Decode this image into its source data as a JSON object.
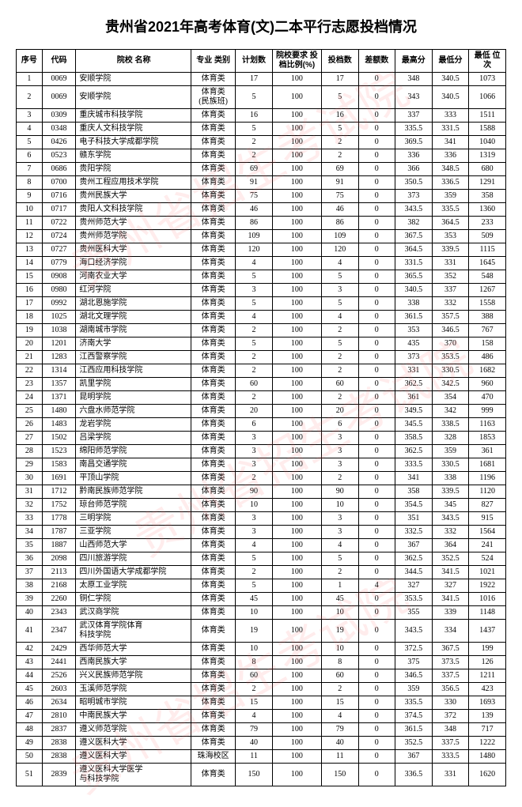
{
  "title": "贵州省2021年高考体育(文)二本平行志愿投档情况",
  "watermark": "贵州省招生考试院",
  "headers": {
    "seq": "序号",
    "code": "代码",
    "name": "院校\n名称",
    "major": "专业\n类别",
    "plan": "计划数",
    "ratio": "院校要求\n投档比例(%)",
    "admit": "投档数",
    "diff": "差额数",
    "max": "最高分",
    "min": "最低分",
    "rank": "最低\n位次"
  },
  "rows": [
    {
      "seq": "1",
      "code": "0069",
      "name": "安顺学院",
      "major": "体育类",
      "plan": "17",
      "ratio": "100",
      "admit": "17",
      "diff": "0",
      "max": "348",
      "min": "340.5",
      "rank": "1073"
    },
    {
      "seq": "2",
      "code": "0069",
      "name": "安顺学院",
      "major": "体育类\n(民族班)",
      "plan": "5",
      "ratio": "100",
      "admit": "5",
      "diff": "0",
      "max": "343",
      "min": "340.5",
      "rank": "1066"
    },
    {
      "seq": "3",
      "code": "0309",
      "name": "重庆城市科技学院",
      "major": "体育类",
      "plan": "16",
      "ratio": "100",
      "admit": "16",
      "diff": "0",
      "max": "337",
      "min": "333",
      "rank": "1511"
    },
    {
      "seq": "4",
      "code": "0348",
      "name": "重庆人文科技学院",
      "major": "体育类",
      "plan": "5",
      "ratio": "100",
      "admit": "5",
      "diff": "0",
      "max": "335.5",
      "min": "331.5",
      "rank": "1588"
    },
    {
      "seq": "5",
      "code": "0426",
      "name": "电子科技大学成都学院",
      "major": "体育类",
      "plan": "2",
      "ratio": "100",
      "admit": "2",
      "diff": "0",
      "max": "369.5",
      "min": "341",
      "rank": "1040"
    },
    {
      "seq": "6",
      "code": "0523",
      "name": "赣东学院",
      "major": "体育类",
      "plan": "2",
      "ratio": "100",
      "admit": "2",
      "diff": "0",
      "max": "336",
      "min": "336",
      "rank": "1319"
    },
    {
      "seq": "7",
      "code": "0686",
      "name": "贵阳学院",
      "major": "体育类",
      "plan": "69",
      "ratio": "100",
      "admit": "69",
      "diff": "0",
      "max": "366",
      "min": "348.5",
      "rank": "680"
    },
    {
      "seq": "8",
      "code": "0700",
      "name": "贵州工程应用技术学院",
      "major": "体育类",
      "plan": "91",
      "ratio": "100",
      "admit": "91",
      "diff": "0",
      "max": "350.5",
      "min": "336.5",
      "rank": "1291"
    },
    {
      "seq": "9",
      "code": "0716",
      "name": "贵州民族大学",
      "major": "体育类",
      "plan": "75",
      "ratio": "100",
      "admit": "75",
      "diff": "0",
      "max": "373",
      "min": "359",
      "rank": "358"
    },
    {
      "seq": "10",
      "code": "0717",
      "name": "贵阳人文科技学院",
      "major": "体育类",
      "plan": "46",
      "ratio": "100",
      "admit": "46",
      "diff": "0",
      "max": "343.5",
      "min": "335.5",
      "rank": "1360"
    },
    {
      "seq": "11",
      "code": "0722",
      "name": "贵州师范大学",
      "major": "体育类",
      "plan": "86",
      "ratio": "100",
      "admit": "86",
      "diff": "0",
      "max": "382",
      "min": "364.5",
      "rank": "233"
    },
    {
      "seq": "12",
      "code": "0724",
      "name": "贵州师范学院",
      "major": "体育类",
      "plan": "109",
      "ratio": "100",
      "admit": "109",
      "diff": "0",
      "max": "367.5",
      "min": "353",
      "rank": "509"
    },
    {
      "seq": "13",
      "code": "0727",
      "name": "贵州医科大学",
      "major": "体育类",
      "plan": "120",
      "ratio": "100",
      "admit": "120",
      "diff": "0",
      "max": "364.5",
      "min": "339.5",
      "rank": "1115"
    },
    {
      "seq": "14",
      "code": "0779",
      "name": "海口经济学院",
      "major": "体育类",
      "plan": "4",
      "ratio": "100",
      "admit": "4",
      "diff": "0",
      "max": "331.5",
      "min": "331",
      "rank": "1645"
    },
    {
      "seq": "15",
      "code": "0908",
      "name": "河南农业大学",
      "major": "体育类",
      "plan": "5",
      "ratio": "100",
      "admit": "5",
      "diff": "0",
      "max": "365.5",
      "min": "352",
      "rank": "548"
    },
    {
      "seq": "16",
      "code": "0980",
      "name": "红河学院",
      "major": "体育类",
      "plan": "3",
      "ratio": "100",
      "admit": "3",
      "diff": "0",
      "max": "340.5",
      "min": "337",
      "rank": "1267"
    },
    {
      "seq": "17",
      "code": "0992",
      "name": "湖北恩施学院",
      "major": "体育类",
      "plan": "5",
      "ratio": "100",
      "admit": "5",
      "diff": "0",
      "max": "338",
      "min": "332",
      "rank": "1558"
    },
    {
      "seq": "18",
      "code": "1025",
      "name": "湖北文理学院",
      "major": "体育类",
      "plan": "4",
      "ratio": "100",
      "admit": "4",
      "diff": "0",
      "max": "361.5",
      "min": "357.5",
      "rank": "388"
    },
    {
      "seq": "19",
      "code": "1038",
      "name": "湖南城市学院",
      "major": "体育类",
      "plan": "2",
      "ratio": "100",
      "admit": "2",
      "diff": "0",
      "max": "353",
      "min": "346.5",
      "rank": "767"
    },
    {
      "seq": "20",
      "code": "1201",
      "name": "济南大学",
      "major": "体育类",
      "plan": "5",
      "ratio": "100",
      "admit": "5",
      "diff": "0",
      "max": "435",
      "min": "370",
      "rank": "158"
    },
    {
      "seq": "21",
      "code": "1283",
      "name": "江西警察学院",
      "major": "体育类",
      "plan": "2",
      "ratio": "100",
      "admit": "2",
      "diff": "0",
      "max": "373",
      "min": "353.5",
      "rank": "486"
    },
    {
      "seq": "22",
      "code": "1314",
      "name": "江西应用科技学院",
      "major": "体育类",
      "plan": "2",
      "ratio": "100",
      "admit": "2",
      "diff": "0",
      "max": "331",
      "min": "330.5",
      "rank": "1682"
    },
    {
      "seq": "23",
      "code": "1357",
      "name": "凯里学院",
      "major": "体育类",
      "plan": "60",
      "ratio": "100",
      "admit": "60",
      "diff": "0",
      "max": "362.5",
      "min": "342.5",
      "rank": "960"
    },
    {
      "seq": "24",
      "code": "1371",
      "name": "昆明学院",
      "major": "体育类",
      "plan": "2",
      "ratio": "100",
      "admit": "2",
      "diff": "0",
      "max": "361",
      "min": "354",
      "rank": "470"
    },
    {
      "seq": "25",
      "code": "1480",
      "name": "六盘水师范学院",
      "major": "体育类",
      "plan": "20",
      "ratio": "100",
      "admit": "20",
      "diff": "0",
      "max": "349.5",
      "min": "342",
      "rank": "999"
    },
    {
      "seq": "26",
      "code": "1483",
      "name": "龙岩学院",
      "major": "体育类",
      "plan": "6",
      "ratio": "100",
      "admit": "6",
      "diff": "0",
      "max": "345.5",
      "min": "338.5",
      "rank": "1163"
    },
    {
      "seq": "27",
      "code": "1502",
      "name": "吕梁学院",
      "major": "体育类",
      "plan": "3",
      "ratio": "100",
      "admit": "3",
      "diff": "0",
      "max": "358.5",
      "min": "328",
      "rank": "1853"
    },
    {
      "seq": "28",
      "code": "1523",
      "name": "绵阳师范学院",
      "major": "体育类",
      "plan": "3",
      "ratio": "100",
      "admit": "3",
      "diff": "0",
      "max": "362.5",
      "min": "359",
      "rank": "361"
    },
    {
      "seq": "29",
      "code": "1583",
      "name": "南昌交通学院",
      "major": "体育类",
      "plan": "3",
      "ratio": "100",
      "admit": "3",
      "diff": "0",
      "max": "333.5",
      "min": "330.5",
      "rank": "1681"
    },
    {
      "seq": "30",
      "code": "1691",
      "name": "平顶山学院",
      "major": "体育类",
      "plan": "2",
      "ratio": "100",
      "admit": "2",
      "diff": "0",
      "max": "341",
      "min": "338",
      "rank": "1196"
    },
    {
      "seq": "31",
      "code": "1712",
      "name": "黔南民族师范学院",
      "major": "体育类",
      "plan": "90",
      "ratio": "100",
      "admit": "90",
      "diff": "0",
      "max": "358",
      "min": "339.5",
      "rank": "1120"
    },
    {
      "seq": "32",
      "code": "1752",
      "name": "琼台师范学院",
      "major": "体育类",
      "plan": "10",
      "ratio": "100",
      "admit": "10",
      "diff": "0",
      "max": "354.5",
      "min": "345",
      "rank": "827"
    },
    {
      "seq": "33",
      "code": "1778",
      "name": "三明学院",
      "major": "体育类",
      "plan": "3",
      "ratio": "100",
      "admit": "3",
      "diff": "0",
      "max": "351",
      "min": "343.5",
      "rank": "915"
    },
    {
      "seq": "34",
      "code": "1787",
      "name": "三亚学院",
      "major": "体育类",
      "plan": "3",
      "ratio": "100",
      "admit": "3",
      "diff": "0",
      "max": "332.5",
      "min": "332",
      "rank": "1564"
    },
    {
      "seq": "35",
      "code": "1887",
      "name": "山西师范大学",
      "major": "体育类",
      "plan": "4",
      "ratio": "100",
      "admit": "4",
      "diff": "0",
      "max": "367",
      "min": "364",
      "rank": "241"
    },
    {
      "seq": "36",
      "code": "2098",
      "name": "四川旅游学院",
      "major": "体育类",
      "plan": "5",
      "ratio": "100",
      "admit": "5",
      "diff": "0",
      "max": "362.5",
      "min": "352.5",
      "rank": "524"
    },
    {
      "seq": "37",
      "code": "2113",
      "name": "四川外国语大学成都学院",
      "major": "体育类",
      "plan": "2",
      "ratio": "100",
      "admit": "2",
      "diff": "0",
      "max": "344.5",
      "min": "341.5",
      "rank": "1021"
    },
    {
      "seq": "38",
      "code": "2168",
      "name": "太原工业学院",
      "major": "体育类",
      "plan": "5",
      "ratio": "100",
      "admit": "1",
      "diff": "4",
      "max": "327",
      "min": "327",
      "rank": "1922"
    },
    {
      "seq": "39",
      "code": "2260",
      "name": "铜仁学院",
      "major": "体育类",
      "plan": "45",
      "ratio": "100",
      "admit": "45",
      "diff": "0",
      "max": "353.5",
      "min": "341.5",
      "rank": "1016"
    },
    {
      "seq": "40",
      "code": "2343",
      "name": "武汉商学院",
      "major": "体育类",
      "plan": "10",
      "ratio": "100",
      "admit": "10",
      "diff": "0",
      "max": "355",
      "min": "339",
      "rank": "1148"
    },
    {
      "seq": "41",
      "code": "2347",
      "name": "武汉体育学院体育\n科技学院",
      "major": "体育类",
      "plan": "19",
      "ratio": "100",
      "admit": "19",
      "diff": "0",
      "max": "343.5",
      "min": "334",
      "rank": "1437"
    },
    {
      "seq": "42",
      "code": "2429",
      "name": "西华师范大学",
      "major": "体育类",
      "plan": "10",
      "ratio": "100",
      "admit": "10",
      "diff": "0",
      "max": "372.5",
      "min": "367.5",
      "rank": "199"
    },
    {
      "seq": "43",
      "code": "2441",
      "name": "西南民族大学",
      "major": "体育类",
      "plan": "8",
      "ratio": "100",
      "admit": "8",
      "diff": "0",
      "max": "375",
      "min": "373.5",
      "rank": "126"
    },
    {
      "seq": "44",
      "code": "2526",
      "name": "兴义民族师范学院",
      "major": "体育类",
      "plan": "60",
      "ratio": "100",
      "admit": "60",
      "diff": "0",
      "max": "346.5",
      "min": "337.5",
      "rank": "1211"
    },
    {
      "seq": "45",
      "code": "2603",
      "name": "玉溪师范学院",
      "major": "体育类",
      "plan": "2",
      "ratio": "100",
      "admit": "2",
      "diff": "0",
      "max": "359",
      "min": "356.5",
      "rank": "423"
    },
    {
      "seq": "46",
      "code": "2634",
      "name": "昭明城市学院",
      "major": "体育类",
      "plan": "15",
      "ratio": "100",
      "admit": "15",
      "diff": "0",
      "max": "335.5",
      "min": "330",
      "rank": "1693"
    },
    {
      "seq": "47",
      "code": "2810",
      "name": "中南民族大学",
      "major": "体育类",
      "plan": "4",
      "ratio": "100",
      "admit": "4",
      "diff": "0",
      "max": "374.5",
      "min": "372",
      "rank": "139"
    },
    {
      "seq": "48",
      "code": "2837",
      "name": "遵义师范学院",
      "major": "体育类",
      "plan": "79",
      "ratio": "100",
      "admit": "79",
      "diff": "0",
      "max": "361.5",
      "min": "348",
      "rank": "717"
    },
    {
      "seq": "49",
      "code": "2838",
      "name": "遵义医科大学",
      "major": "体育类",
      "plan": "40",
      "ratio": "100",
      "admit": "40",
      "diff": "0",
      "max": "352.5",
      "min": "337.5",
      "rank": "1222"
    },
    {
      "seq": "50",
      "code": "2838",
      "name": "遵义医科大学",
      "major": "珠海校区",
      "plan": "11",
      "ratio": "100",
      "admit": "11",
      "diff": "0",
      "max": "367",
      "min": "333.5",
      "rank": "1480"
    },
    {
      "seq": "51",
      "code": "2839",
      "name": "遵义医科大学医学\n与科技学院",
      "major": "体育类",
      "plan": "150",
      "ratio": "100",
      "admit": "150",
      "diff": "0",
      "max": "336.5",
      "min": "331",
      "rank": "1620"
    }
  ]
}
